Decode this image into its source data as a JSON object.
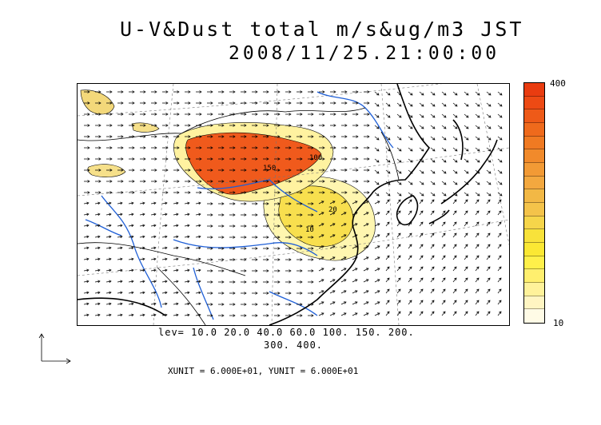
{
  "title": {
    "line1": "U-V&Dust total m/s&ug/m3 JST",
    "line2": "2008/11/25.21:00:00"
  },
  "contour_levels": {
    "line1": "lev= 10.0 20.0 40.0 60.0 100. 150. 200.",
    "line2": "300. 400."
  },
  "units_text": "XUNIT = 6.000E+01, YUNIT = 6.000E+01",
  "colorbar": {
    "max_label": "400",
    "min_label": "10",
    "colors_bottom_to_top": [
      "#fffbe6",
      "#fff5c2",
      "#fff29a",
      "#ffef6e",
      "#fff04a",
      "#fbe834",
      "#f8e23a",
      "#f6d54a",
      "#f4c34a",
      "#f2b845",
      "#f3a83f",
      "#f29a35",
      "#f18a2b",
      "#f07a22",
      "#ef6a1c",
      "#ee5a18",
      "#ed4a14",
      "#e93c10"
    ]
  },
  "map_colors": {
    "coast": "#000000",
    "river": "#1f5fd6",
    "dust_high": "#f05a1c",
    "dust_mid": "#f8d94a",
    "dust_low": "#fff6b0"
  },
  "contour_labels": [
    "100",
    "150",
    "20",
    "10"
  ]
}
